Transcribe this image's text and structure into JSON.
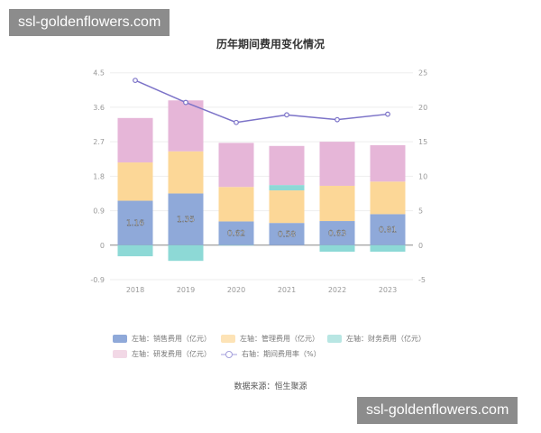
{
  "watermark": "ssl-goldenflowers.com",
  "source": "数据来源：恒生聚源",
  "chart_data": {
    "type": "bar",
    "title": "历年期间费用变化情况",
    "categories": [
      "2018",
      "2019",
      "2020",
      "2021",
      "2022",
      "2023"
    ],
    "left_axis": {
      "ylim": [
        -0.9,
        4.5
      ],
      "ticks": [
        "-0.9",
        "0",
        "0.9",
        "1.8",
        "2.7",
        "3.6",
        "4.5"
      ]
    },
    "right_axis": {
      "ylim": [
        -5,
        25
      ],
      "ticks": [
        "-5",
        "0",
        "5",
        "10",
        "15",
        "20",
        "25"
      ]
    },
    "grid": true,
    "legend_position": "bottom",
    "series": [
      {
        "name": "左轴：销售费用（亿元）",
        "type": "stacked-bar",
        "color": "#8fa9d9",
        "values": [
          1.16,
          1.35,
          0.62,
          0.58,
          0.63,
          0.81
        ],
        "labels": [
          "1.16",
          "1.35",
          "0.62",
          "0.58",
          "0.63",
          "0.81"
        ]
      },
      {
        "name": "左轴：管理费用（亿元）",
        "type": "stacked-bar",
        "color": "#fcd797",
        "values": [
          1.0,
          1.1,
          0.9,
          0.85,
          0.92,
          0.85
        ]
      },
      {
        "name": "左轴：财务费用（亿元）",
        "type": "stacked-bar",
        "color": "#8dd9d6",
        "values": [
          -0.29,
          -0.41,
          -0.01,
          0.14,
          -0.17,
          -0.17
        ]
      },
      {
        "name": "左轴：研发费用（亿元）",
        "type": "stacked-bar",
        "color": "#e6b6d8",
        "values": [
          1.16,
          1.33,
          1.15,
          1.02,
          1.15,
          0.95
        ]
      },
      {
        "name": "右轴：期间费用率（%）",
        "type": "line",
        "color": "#7c73c8",
        "values": [
          23.9,
          20.7,
          17.8,
          18.9,
          18.2,
          19.0
        ]
      }
    ]
  }
}
